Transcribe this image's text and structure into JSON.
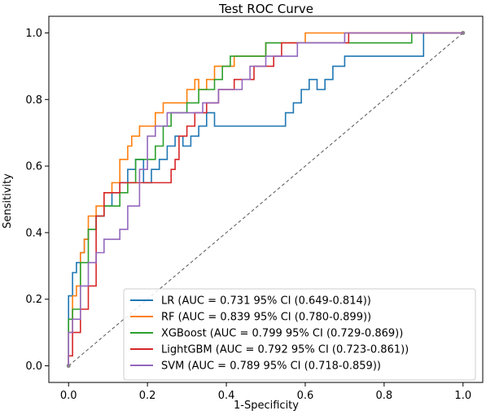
{
  "chart_data": {
    "type": "line",
    "title": "Test ROC Curve",
    "xlabel": "1-Specificity",
    "ylabel": "Sensitivity",
    "xlim": [
      -0.05,
      1.05
    ],
    "ylim": [
      -0.05,
      1.05
    ],
    "xticks": [
      "0.0",
      "0.2",
      "0.4",
      "0.6",
      "0.8",
      "1.0"
    ],
    "yticks": [
      "0.0",
      "0.2",
      "0.4",
      "0.6",
      "0.8",
      "1.0"
    ],
    "grid": false,
    "legend_position": "lower-right",
    "diagonal": {
      "style": "dashed",
      "color": "#555555",
      "x": [
        0,
        1
      ],
      "y": [
        0,
        1
      ]
    },
    "series": [
      {
        "name": "LR (AUC = 0.731 95% CI (0.649-0.814))",
        "color": "#1f77b4",
        "x": [
          0,
          0,
          0.01,
          0.01,
          0.02,
          0.02,
          0.03,
          0.03,
          0.04,
          0.04,
          0.05,
          0.05,
          0.07,
          0.07,
          0.09,
          0.09,
          0.11,
          0.11,
          0.13,
          0.13,
          0.15,
          0.15,
          0.17,
          0.17,
          0.19,
          0.19,
          0.21,
          0.21,
          0.23,
          0.23,
          0.25,
          0.25,
          0.27,
          0.27,
          0.29,
          0.29,
          0.31,
          0.31,
          0.33,
          0.33,
          0.35,
          0.35,
          0.37,
          0.37,
          0.39,
          0.39,
          0.55,
          0.55,
          0.57,
          0.57,
          0.59,
          0.59,
          0.61,
          0.61,
          0.63,
          0.63,
          0.65,
          0.65,
          0.67,
          0.67,
          0.7,
          0.7,
          0.9,
          0.9,
          1.0
        ],
        "y": [
          0,
          0.21,
          0.21,
          0.28,
          0.28,
          0.31,
          0.31,
          0.34,
          0.34,
          0.38,
          0.38,
          0.41,
          0.41,
          0.45,
          0.45,
          0.48,
          0.48,
          0.52,
          0.52,
          0.55,
          0.55,
          0.59,
          0.59,
          0.62,
          0.62,
          0.55,
          0.55,
          0.59,
          0.59,
          0.62,
          0.62,
          0.66,
          0.66,
          0.69,
          0.69,
          0.66,
          0.66,
          0.69,
          0.69,
          0.72,
          0.72,
          0.76,
          0.76,
          0.72,
          0.72,
          0.72,
          0.72,
          0.76,
          0.76,
          0.79,
          0.79,
          0.83,
          0.83,
          0.86,
          0.86,
          0.83,
          0.83,
          0.86,
          0.86,
          0.9,
          0.9,
          0.93,
          0.93,
          1.0,
          1.0
        ]
      },
      {
        "name": "RF (AUC = 0.839 95% CI (0.780-0.899))",
        "color": "#ff7f0e",
        "x": [
          0,
          0,
          0.01,
          0.01,
          0.02,
          0.02,
          0.03,
          0.03,
          0.04,
          0.04,
          0.05,
          0.05,
          0.07,
          0.07,
          0.09,
          0.09,
          0.11,
          0.11,
          0.13,
          0.13,
          0.15,
          0.15,
          0.16,
          0.16,
          0.18,
          0.18,
          0.22,
          0.22,
          0.24,
          0.24,
          0.3,
          0.3,
          0.32,
          0.32,
          0.33,
          0.33,
          0.35,
          0.35,
          0.37,
          0.37,
          0.42,
          0.42,
          0.46,
          0.46,
          0.5,
          0.5,
          0.54,
          0.54,
          0.6,
          0.6,
          0.62,
          0.62,
          1.0
        ],
        "y": [
          0,
          0.1,
          0.1,
          0.21,
          0.21,
          0.24,
          0.24,
          0.34,
          0.34,
          0.38,
          0.38,
          0.45,
          0.45,
          0.48,
          0.48,
          0.52,
          0.52,
          0.55,
          0.55,
          0.62,
          0.62,
          0.66,
          0.66,
          0.69,
          0.69,
          0.72,
          0.72,
          0.76,
          0.76,
          0.79,
          0.79,
          0.83,
          0.83,
          0.86,
          0.86,
          0.83,
          0.83,
          0.86,
          0.86,
          0.9,
          0.9,
          0.93,
          0.93,
          0.93,
          0.93,
          0.97,
          0.97,
          0.97,
          0.97,
          1.0,
          1.0,
          1.0,
          1.0
        ]
      },
      {
        "name": "XGBoost (AUC = 0.799 95% CI (0.729-0.869))",
        "color": "#2ca02c",
        "x": [
          0,
          0,
          0.01,
          0.01,
          0.03,
          0.03,
          0.05,
          0.05,
          0.07,
          0.07,
          0.09,
          0.09,
          0.13,
          0.13,
          0.15,
          0.15,
          0.17,
          0.17,
          0.22,
          0.22,
          0.24,
          0.24,
          0.26,
          0.26,
          0.3,
          0.3,
          0.33,
          0.33,
          0.37,
          0.37,
          0.39,
          0.39,
          0.41,
          0.41,
          0.45,
          0.45,
          0.5,
          0.5,
          0.62,
          0.62,
          0.87,
          0.87,
          1.0
        ],
        "y": [
          0,
          0.14,
          0.14,
          0.17,
          0.17,
          0.31,
          0.31,
          0.41,
          0.41,
          0.45,
          0.45,
          0.48,
          0.48,
          0.52,
          0.52,
          0.55,
          0.55,
          0.62,
          0.62,
          0.66,
          0.66,
          0.72,
          0.72,
          0.76,
          0.76,
          0.79,
          0.79,
          0.83,
          0.83,
          0.86,
          0.86,
          0.9,
          0.9,
          0.93,
          0.93,
          0.93,
          0.93,
          0.97,
          0.97,
          0.97,
          0.97,
          1.0,
          1.0
        ]
      },
      {
        "name": "LightGBM (AUC = 0.792 95% CI (0.723-0.861))",
        "color": "#d62728",
        "x": [
          0,
          0,
          0.01,
          0.01,
          0.03,
          0.03,
          0.05,
          0.05,
          0.07,
          0.07,
          0.09,
          0.09,
          0.11,
          0.11,
          0.13,
          0.13,
          0.16,
          0.16,
          0.26,
          0.26,
          0.27,
          0.27,
          0.28,
          0.28,
          0.3,
          0.3,
          0.32,
          0.32,
          0.35,
          0.35,
          0.38,
          0.38,
          0.42,
          0.42,
          0.47,
          0.47,
          0.52,
          0.52,
          0.54,
          0.54,
          0.62,
          0.62,
          0.71,
          0.71,
          0.78,
          0.78,
          1.0
        ],
        "y": [
          0,
          0.03,
          0.03,
          0.1,
          0.1,
          0.17,
          0.17,
          0.24,
          0.24,
          0.45,
          0.45,
          0.52,
          0.52,
          0.52,
          0.52,
          0.55,
          0.55,
          0.55,
          0.55,
          0.59,
          0.59,
          0.62,
          0.62,
          0.69,
          0.69,
          0.72,
          0.72,
          0.76,
          0.76,
          0.79,
          0.79,
          0.83,
          0.83,
          0.86,
          0.86,
          0.9,
          0.9,
          0.93,
          0.93,
          0.97,
          0.97,
          0.97,
          0.97,
          1.0,
          1.0,
          1.0,
          1.0
        ]
      },
      {
        "name": "SVM (AUC = 0.789 95% CI (0.718-0.859))",
        "color": "#9467bd",
        "x": [
          0,
          0,
          0.01,
          0.01,
          0.03,
          0.03,
          0.05,
          0.05,
          0.07,
          0.07,
          0.09,
          0.09,
          0.13,
          0.13,
          0.15,
          0.15,
          0.18,
          0.18,
          0.2,
          0.2,
          0.22,
          0.22,
          0.25,
          0.25,
          0.34,
          0.34,
          0.38,
          0.38,
          0.44,
          0.44,
          0.46,
          0.46,
          0.5,
          0.5,
          0.55,
          0.55,
          0.58,
          0.58,
          0.64,
          0.64,
          0.7,
          0.7,
          1.0
        ],
        "y": [
          0,
          0.1,
          0.1,
          0.14,
          0.14,
          0.24,
          0.24,
          0.31,
          0.31,
          0.34,
          0.34,
          0.38,
          0.38,
          0.41,
          0.41,
          0.48,
          0.48,
          0.59,
          0.59,
          0.69,
          0.69,
          0.72,
          0.72,
          0.76,
          0.76,
          0.79,
          0.79,
          0.83,
          0.83,
          0.86,
          0.86,
          0.9,
          0.9,
          0.93,
          0.93,
          0.93,
          0.93,
          0.97,
          0.97,
          0.97,
          0.97,
          1.0,
          1.0
        ]
      }
    ]
  }
}
